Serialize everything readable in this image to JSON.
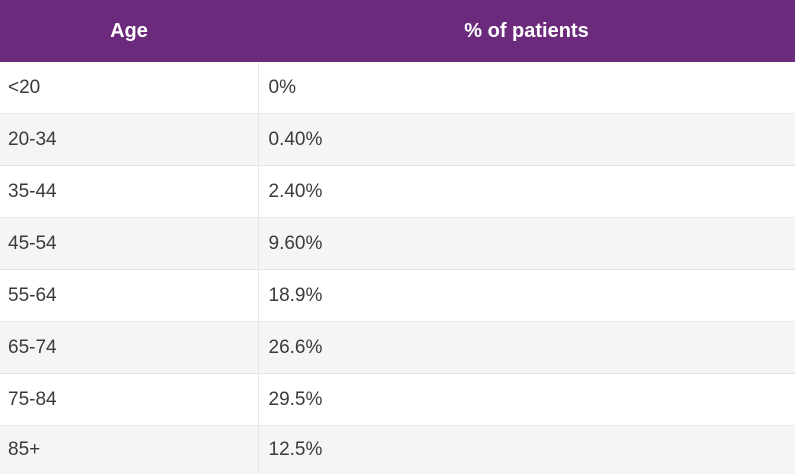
{
  "colors": {
    "header_bg": "#6b2a7b",
    "header_text": "#ffffff",
    "row_alt_bg": "#f5f5f5",
    "cell_text": "#3a3a3a"
  },
  "chart_data": {
    "type": "table",
    "columns": [
      "Age",
      "% of patients"
    ],
    "rows": [
      [
        "<20",
        "0%"
      ],
      [
        "20-34",
        "0.40%"
      ],
      [
        "35-44",
        "2.40%"
      ],
      [
        "45-54",
        "9.60%"
      ],
      [
        "55-64",
        "18.9%"
      ],
      [
        "65-74",
        "26.6%"
      ],
      [
        "75-84",
        "29.5%"
      ],
      [
        "85+",
        "12.5%"
      ]
    ]
  }
}
